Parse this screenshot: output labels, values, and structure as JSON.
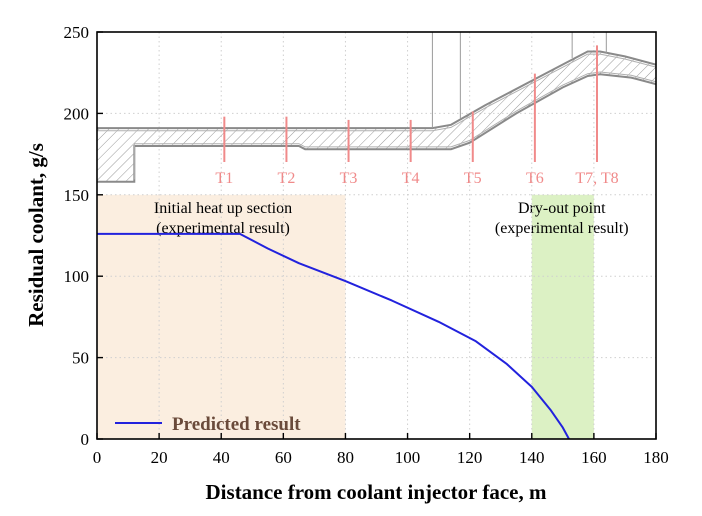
{
  "chart_data": {
    "type": "line",
    "xlabel": "Distance from coolant injector face, m",
    "ylabel": "Residual coolant, g/s",
    "xlim": [
      0,
      180
    ],
    "ylim": [
      0,
      250
    ],
    "x_ticks": [
      "0",
      "20",
      "40",
      "60",
      "80",
      "100",
      "120",
      "140",
      "160",
      "180"
    ],
    "y_ticks": [
      "0",
      "50",
      "100",
      "150",
      "200",
      "250"
    ],
    "grid": "dotted",
    "legend": {
      "placement": "bottom-left",
      "entries": [
        "Predicted result"
      ]
    },
    "series": [
      {
        "name": "Predicted result",
        "color": "#2222dd",
        "x": [
          0,
          46,
          55,
          65,
          80,
          95,
          110,
          122,
          132,
          140,
          146,
          150,
          152
        ],
        "y": [
          126,
          126,
          117,
          108,
          97,
          85,
          72,
          60,
          46,
          32,
          18,
          7,
          0
        ]
      }
    ],
    "regions": [
      {
        "label_lines": [
          "Initial heat up section",
          "(experimental result)"
        ],
        "x_range": [
          0,
          80
        ],
        "color": "#fbeee0"
      },
      {
        "label_lines": [
          "Dry-out point",
          "(experimental result)"
        ],
        "x_range": [
          140,
          160
        ],
        "color": "#dcf1c4"
      }
    ],
    "sensors": [
      {
        "label": "T1",
        "x": 41
      },
      {
        "label": "T2",
        "x": 61
      },
      {
        "label": "T3",
        "x": 81
      },
      {
        "label": "T4",
        "x": 101
      },
      {
        "label": "T5",
        "x": 121
      },
      {
        "label": "T6",
        "x": 141
      },
      {
        "label": "T7, T8",
        "x": 161
      }
    ],
    "sensor_color": "#f08a8a",
    "chamber_contour": {
      "outer_upper": [
        [
          0,
          191
        ],
        [
          108,
          191
        ],
        [
          114,
          193
        ],
        [
          125,
          205
        ],
        [
          140,
          220
        ],
        [
          152,
          232
        ],
        [
          158,
          238
        ],
        [
          162,
          238
        ],
        [
          170,
          235
        ],
        [
          180,
          230
        ]
      ],
      "inner_surface": [
        [
          0,
          158
        ],
        [
          12,
          158
        ],
        [
          12,
          180
        ],
        [
          65,
          180
        ],
        [
          67,
          178
        ],
        [
          114,
          178
        ],
        [
          120,
          182
        ],
        [
          135,
          200
        ],
        [
          150,
          216
        ],
        [
          158,
          223
        ],
        [
          162,
          224
        ],
        [
          172,
          222
        ],
        [
          180,
          218
        ]
      ]
    }
  }
}
